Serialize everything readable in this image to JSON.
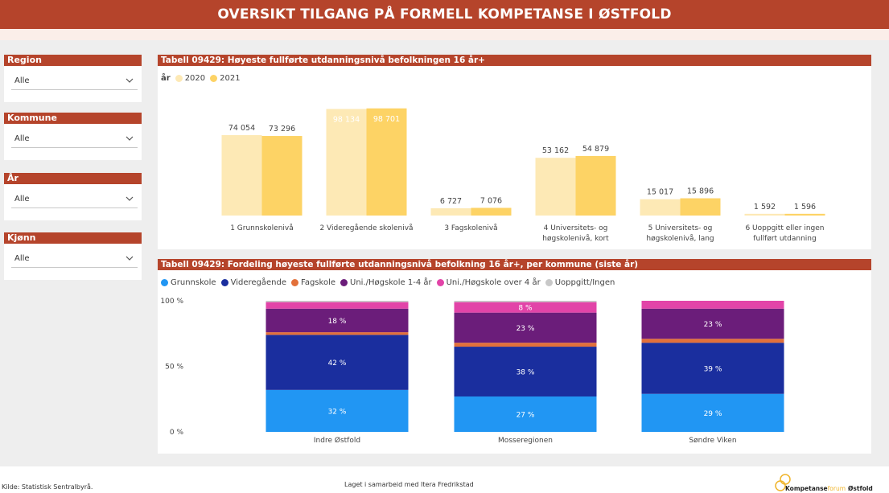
{
  "header": {
    "title": "OVERSIKT TILGANG PÅ FORMELL KOMPETANSE I ØSTFOLD"
  },
  "slicers": [
    {
      "label": "Region",
      "value": "Alle"
    },
    {
      "label": "Kommune",
      "value": "Alle"
    },
    {
      "label": "År",
      "value": "Alle"
    },
    {
      "label": "Kjønn",
      "value": "Alle"
    }
  ],
  "panel1": {
    "title": "Tabell 09429: Høyeste fullførte utdanningsnivå befolkningen 16 år+",
    "legend_title": "år",
    "legend": [
      {
        "name": "2020",
        "color": "#fde9b5"
      },
      {
        "name": "2021",
        "color": "#fdd365"
      }
    ]
  },
  "panel2": {
    "title": "Tabell 09429: Fordeling høyeste fullførte utdanningsnivå befolkning 16 år+, per kommune (siste år)",
    "legend": [
      {
        "name": "Grunnskole",
        "color": "#2196f3"
      },
      {
        "name": "Videregående",
        "color": "#1a2e9e"
      },
      {
        "name": "Fagskole",
        "color": "#e2703a"
      },
      {
        "name": "Uni./Høgskole 1-4 år",
        "color": "#6b1d7a"
      },
      {
        "name": "Uni./Høgskole over 4 år",
        "color": "#e244a8"
      },
      {
        "name": "Uoppgitt/Ingen",
        "color": "#c8c8c8"
      }
    ]
  },
  "chart_data": [
    {
      "type": "bar",
      "title": "Tabell 09429: Høyeste fullførte utdanningsnivå befolkningen 16 år+",
      "categories": [
        [
          "1 Grunnskolenivå"
        ],
        [
          "2 Videregående skolenivå"
        ],
        [
          "3 Fagskolenivå"
        ],
        [
          "4 Universitets- og",
          "høgskolenivå, kort"
        ],
        [
          "5 Universitets- og",
          "høgskolenivå, lang"
        ],
        [
          "6 Uoppgitt eller ingen",
          "fullført utdanning"
        ]
      ],
      "series": [
        {
          "name": "2020",
          "values": [
            74054,
            98134,
            6727,
            53162,
            15017,
            1592
          ],
          "labels": [
            "74 054",
            "98 134",
            "6 727",
            "53 162",
            "15 017",
            "1 592"
          ],
          "color": "#fde9b5"
        },
        {
          "name": "2021",
          "values": [
            73296,
            98701,
            7076,
            54879,
            15896,
            1596
          ],
          "labels": [
            "73 296",
            "98 701",
            "7 076",
            "54 879",
            "15 896",
            "1 596"
          ],
          "color": "#fdd365"
        }
      ],
      "ylim": [
        0,
        100000
      ],
      "legend": "top-left",
      "grid": false
    },
    {
      "type": "bar",
      "stacked": "percent",
      "title": "Tabell 09429: Fordeling høyeste fullførte utdanningsnivå befolkning 16 år+, per kommune (siste år)",
      "categories": [
        "Indre Østfold",
        "Mosseregionen",
        "Søndre Viken"
      ],
      "y_ticks": [
        "0 %",
        "50 %",
        "100 %"
      ],
      "series": [
        {
          "name": "Grunnskole",
          "values": [
            32,
            27,
            29
          ],
          "color": "#2196f3"
        },
        {
          "name": "Videregående",
          "values": [
            42,
            38,
            39
          ],
          "color": "#1a2e9e"
        },
        {
          "name": "Fagskole",
          "values": [
            2,
            3,
            3
          ],
          "color": "#e2703a"
        },
        {
          "name": "Uni./Høgskole 1-4 år",
          "values": [
            18,
            23,
            23
          ],
          "color": "#6b1d7a"
        },
        {
          "name": "Uni./Høgskole over 4 år",
          "values": [
            5,
            8,
            6
          ],
          "color": "#e244a8"
        },
        {
          "name": "Uoppgitt/Ingen",
          "values": [
            1,
            1,
            0
          ],
          "color": "#c8c8c8"
        }
      ],
      "data_labels": [
        {
          "series": "Grunnskole",
          "labels": [
            "32 %",
            "27 %",
            "29 %"
          ]
        },
        {
          "series": "Videregående",
          "labels": [
            "42 %",
            "38 %",
            "39 %"
          ]
        },
        {
          "series": "Uni./Høgskole 1-4 år",
          "labels": [
            "18 %",
            "23 %",
            "23 %"
          ]
        },
        {
          "series": "Uni./Høgskole over 4 år",
          "labels": [
            "",
            "8 %",
            ""
          ]
        }
      ],
      "legend": "top-left",
      "grid": false
    }
  ],
  "footer": {
    "source": "Kilde: Statistisk Sentralbyrå.",
    "credit": "Laget i samarbeid med Itera Fredrikstad",
    "logo_text_a": "Kompetanse",
    "logo_text_b": "forum",
    "logo_text_c": "Østfold"
  }
}
